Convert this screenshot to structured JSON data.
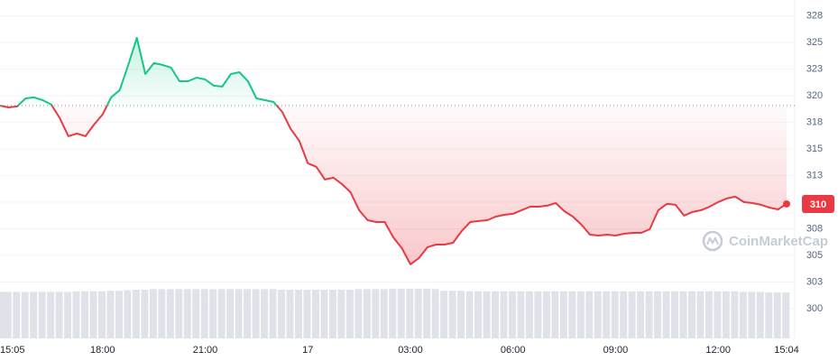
{
  "chart_data": {
    "type": "line",
    "watermark": "CoinMarketCap",
    "categories": [
      "15:05",
      null,
      null,
      null,
      null,
      null,
      null,
      null,
      null,
      null,
      null,
      null,
      "18:00",
      null,
      null,
      null,
      null,
      null,
      null,
      null,
      null,
      null,
      null,
      null,
      "21:00",
      null,
      null,
      null,
      null,
      null,
      null,
      null,
      null,
      null,
      null,
      null,
      "17",
      null,
      null,
      null,
      null,
      null,
      null,
      null,
      null,
      null,
      null,
      null,
      "03:00",
      null,
      null,
      null,
      null,
      null,
      null,
      null,
      null,
      null,
      null,
      null,
      "06:00",
      null,
      null,
      null,
      null,
      null,
      null,
      null,
      null,
      null,
      null,
      null,
      "09:00",
      null,
      null,
      null,
      null,
      null,
      null,
      null,
      null,
      null,
      null,
      null,
      "12:00",
      null,
      null,
      null,
      null,
      null,
      null,
      null,
      "15:04"
    ],
    "values": [
      319.08,
      318.91,
      319.0,
      319.76,
      319.85,
      319.59,
      319.17,
      317.9,
      316.2,
      316.45,
      316.2,
      317.3,
      318.24,
      319.85,
      320.53,
      322.9,
      325.45,
      322.05,
      323.07,
      322.9,
      322.65,
      321.37,
      321.37,
      321.71,
      321.54,
      320.95,
      320.87,
      322.05,
      322.22,
      321.37,
      319.76,
      319.59,
      319.42,
      318.49,
      316.88,
      315.78,
      313.66,
      313.32,
      312.13,
      312.3,
      311.7,
      310.94,
      309.25,
      308.31,
      308.14,
      308.14,
      306.7,
      305.68,
      304.16,
      304.75,
      305.77,
      306.02,
      306.02,
      306.19,
      307.29,
      308.14,
      308.23,
      308.31,
      308.65,
      308.82,
      308.91,
      309.25,
      309.58,
      309.58,
      309.67,
      309.92,
      309.16,
      308.65,
      307.89,
      306.95,
      306.87,
      306.95,
      306.87,
      307.04,
      307.12,
      307.12,
      307.46,
      309.25,
      309.84,
      309.76,
      308.74,
      309.08,
      309.25,
      309.58,
      310.01,
      310.35,
      310.52,
      310.01,
      309.92,
      309.76,
      309.5,
      309.33,
      309.84
    ],
    "value_labels": [
      null,
      null,
      null,
      null,
      null,
      null,
      null,
      null,
      null,
      null,
      null,
      null,
      null,
      null,
      null,
      null,
      null,
      null,
      null,
      null,
      null,
      null,
      null,
      null,
      null,
      null,
      null,
      null,
      null,
      null,
      null,
      null,
      null,
      null,
      null,
      null,
      null,
      null,
      null,
      null,
      null,
      null,
      null,
      null,
      null,
      null,
      null,
      null,
      null,
      null,
      null,
      null,
      null,
      null,
      null,
      null,
      null,
      null,
      null,
      null,
      null,
      null,
      null,
      null,
      null,
      null,
      null,
      null,
      null,
      null,
      null,
      null,
      null,
      null,
      null,
      null,
      null,
      null,
      null,
      null,
      null,
      null,
      null,
      null,
      null,
      null,
      null,
      null,
      null,
      null,
      null,
      null,
      "310"
    ],
    "up_color": "#16c784",
    "down_color": "#ea3943",
    "volume": {
      "color": "#dfe2e8",
      "ylim": [
        0,
        100
      ],
      "values": [
        86,
        86,
        86,
        86,
        86,
        86,
        86,
        86,
        86,
        87,
        87,
        87,
        87,
        88,
        88,
        89,
        90,
        90,
        91,
        91,
        91,
        91,
        91,
        91,
        91,
        91,
        91,
        91,
        91,
        91,
        91,
        91,
        91,
        90,
        90,
        90,
        90,
        90,
        90,
        90,
        90,
        90,
        91,
        91,
        91,
        91,
        92,
        92,
        92,
        92,
        92,
        91,
        88,
        88,
        88,
        87,
        87,
        87,
        87,
        87,
        87,
        87,
        87,
        87,
        87,
        87,
        87,
        87,
        87,
        87,
        87,
        87,
        87,
        87,
        87,
        87,
        87,
        87,
        87,
        87,
        87,
        87,
        87,
        87,
        87,
        87,
        87,
        86,
        86,
        86,
        85,
        85,
        85
      ]
    },
    "ylim": [
      297.2,
      329.0
    ],
    "yticks": [
      300,
      {
        "value": 302.5,
        "label": "303"
      },
      305,
      {
        "value": 307.5,
        "label": "308"
      },
      310,
      {
        "value": 312.5,
        "label": "313"
      },
      315,
      {
        "value": 317.5,
        "label": "318"
      },
      320,
      {
        "value": 322.5,
        "label": "323"
      },
      325,
      {
        "value": 327.5,
        "label": "328"
      }
    ],
    "grid": true
  }
}
